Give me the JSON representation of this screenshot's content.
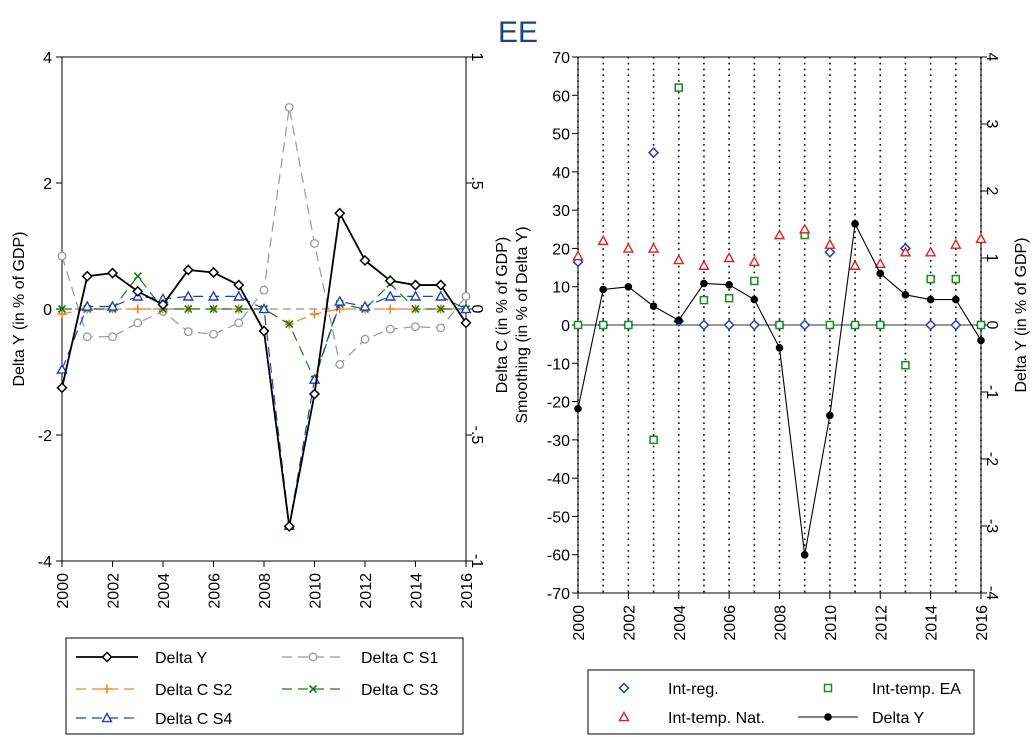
{
  "title": "EE",
  "chart_data": [
    {
      "type": "line",
      "ylabel_left": "Delta Y (in % of GDP)",
      "ylim_left": [
        -4,
        4
      ],
      "yticks_left": [
        "-4",
        "-2",
        "0",
        "2",
        "4"
      ],
      "ylim_right": [
        -1,
        1
      ],
      "yticks_right": [
        "-1",
        "-.5",
        "0",
        ".5",
        "1"
      ],
      "xlim": [
        2000,
        2016
      ],
      "xticks": [
        "2000",
        "2002",
        "2004",
        "2006",
        "2008",
        "2010",
        "2012",
        "2014",
        "2016"
      ],
      "x": [
        2000,
        2001,
        2002,
        2003,
        2004,
        2005,
        2006,
        2007,
        2008,
        2009,
        2010,
        2011,
        2012,
        2013,
        2014,
        2015,
        2016
      ],
      "series": [
        {
          "name": "Delta Y",
          "axis": "left",
          "color": "#000000",
          "marker": "diamond",
          "dash": "",
          "values": [
            -1.25,
            0.52,
            0.57,
            0.28,
            0.07,
            0.62,
            0.58,
            0.38,
            -0.35,
            -3.45,
            -1.35,
            1.52,
            0.77,
            0.45,
            0.38,
            0.38,
            -0.22
          ]
        },
        {
          "name": "Delta C S1",
          "axis": "right",
          "color": "#999999",
          "marker": "circle",
          "dash": "10,6",
          "values": [
            0.21,
            -0.11,
            -0.11,
            -0.055,
            -0.01,
            -0.09,
            -0.1,
            -0.055,
            0.075,
            0.8,
            0.26,
            -0.22,
            -0.12,
            -0.08,
            -0.07,
            -0.075,
            0.05
          ]
        },
        {
          "name": "Delta C S2",
          "axis": "right",
          "color": "#f58220",
          "marker": "plus",
          "dash": "10,6",
          "values": [
            -0.02,
            0.0,
            0.0,
            0.0,
            0.0,
            0.0,
            0.0,
            0.0,
            0.0,
            -0.06,
            -0.02,
            0.0,
            0.0,
            0.0,
            0.0,
            0.0,
            0.0
          ]
        },
        {
          "name": "Delta C S3",
          "axis": "right",
          "color": "#1a7a1a",
          "marker": "x",
          "dash": "10,6",
          "values": [
            0.0,
            0.0,
            0.0,
            0.13,
            0.0,
            0.0,
            0.0,
            0.0,
            0.0,
            -0.06,
            -0.28,
            0.02,
            0.0,
            0.1,
            0.0,
            0.0,
            0.0
          ]
        },
        {
          "name": "Delta C S4",
          "axis": "right",
          "color": "#1f3fbf",
          "marker": "triangle",
          "dash": "10,6",
          "values": [
            -0.24,
            0.01,
            0.01,
            0.05,
            0.04,
            0.05,
            0.05,
            0.05,
            0.0,
            -0.86,
            -0.28,
            0.03,
            0.01,
            0.05,
            0.05,
            0.05,
            0.0
          ]
        }
      ],
      "legend_position": "bottom"
    },
    {
      "type": "scatter",
      "ylabel_left": "Delta C (in % of GDP)",
      "ylabel_left_2": "Smoothing (in % of Delta Y)",
      "ylim_left": [
        -70,
        70
      ],
      "yticks_left": [
        "-70",
        "-60",
        "-50",
        "-40",
        "-30",
        "-20",
        "-10",
        "0",
        "10",
        "20",
        "30",
        "40",
        "50",
        "60",
        "70"
      ],
      "ylabel_right": "Delta Y (in % of GDP)",
      "ylim_right": [
        -4,
        4
      ],
      "yticks_right": [
        "-4",
        "-3",
        "-2",
        "-1",
        "0",
        "1",
        "2",
        "3",
        "4"
      ],
      "xlim": [
        2000,
        2016
      ],
      "xticks": [
        "2000",
        "2002",
        "2004",
        "2006",
        "2008",
        "2010",
        "2012",
        "2014",
        "2016"
      ],
      "x": [
        2000,
        2001,
        2002,
        2003,
        2004,
        2005,
        2006,
        2007,
        2008,
        2009,
        2010,
        2011,
        2012,
        2013,
        2014,
        2015,
        2016
      ],
      "series": [
        {
          "name": "Int-reg.",
          "axis": "left",
          "color": "#1f3fbf",
          "marker": "diamond",
          "values": [
            16.5,
            0,
            0,
            45,
            1,
            0,
            0,
            0,
            0,
            0,
            19,
            0,
            0,
            20,
            0,
            0,
            0
          ]
        },
        {
          "name": "Int-temp. EA",
          "axis": "left",
          "color": "#1a8a1a",
          "marker": "square",
          "values": [
            0,
            0,
            0,
            -30,
            62,
            6.5,
            7,
            11.5,
            0,
            23.5,
            0,
            0,
            0,
            -10.5,
            12,
            12,
            0
          ]
        },
        {
          "name": "Int-temp. Nat.",
          "axis": "left",
          "color": "#e02020",
          "marker": "triangle",
          "values": [
            18,
            22,
            20,
            20,
            17,
            15.5,
            17.5,
            16.5,
            23.5,
            25,
            21,
            15.5,
            16,
            19,
            19,
            21,
            22.5
          ]
        },
        {
          "name": "Delta Y",
          "axis": "right",
          "color": "#000000",
          "marker": "dot",
          "line": true,
          "values": [
            -1.25,
            0.53,
            0.57,
            0.28,
            0.07,
            0.62,
            0.6,
            0.38,
            -0.34,
            -3.43,
            -1.35,
            1.51,
            0.77,
            0.45,
            0.38,
            0.38,
            -0.23
          ]
        }
      ],
      "vlines_dotted": [
        2000,
        2001,
        2002,
        2003,
        2004,
        2005,
        2006,
        2007,
        2008,
        2009,
        2010,
        2011,
        2012,
        2013,
        2014,
        2015,
        2016
      ],
      "legend_position": "bottom"
    }
  ]
}
